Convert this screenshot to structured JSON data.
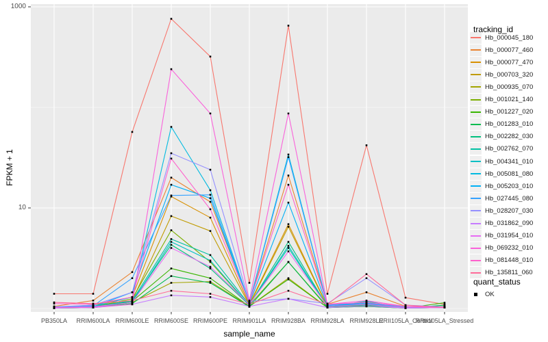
{
  "chart_data": {
    "type": "line",
    "title": "",
    "xlabel": "sample_name",
    "ylabel": "FPKM + 1",
    "y_scale": "log10",
    "grid": true,
    "legend_position": "right",
    "y_axis": {
      "ticks": [
        {
          "label": "1000",
          "value": 1000
        },
        {
          "label": "10",
          "value": 10
        }
      ],
      "minor_gridlines": [
        100,
        1
      ],
      "range_approx": [
        0.95,
        1050
      ]
    },
    "categories": [
      "PB350LA",
      "RRIM600LA",
      "RRIM600LE",
      "RRIM600SE",
      "RRIM600PE",
      "RRIM901LA",
      "RRIM928BA",
      "RRIM928LA",
      "RRIM928LE",
      "RRII105LA_Control",
      "RRII105LA_Stressed"
    ],
    "series": [
      {
        "name": "Hb_000045_180",
        "color": "#F8766D",
        "values": [
          1.4,
          1.4,
          57,
          760,
          320,
          1.8,
          650,
          1.4,
          42,
          1.28,
          1.1
        ]
      },
      {
        "name": "Hb_000077_460",
        "color": "#EA8331",
        "values": [
          1.05,
          1.2,
          2.3,
          20,
          11.5,
          1.15,
          21,
          1.1,
          1.45,
          1.05,
          1.03
        ]
      },
      {
        "name": "Hb_000077_470",
        "color": "#D89000",
        "values": [
          1.03,
          1.08,
          1.3,
          13,
          8.0,
          1.1,
          6.9,
          1.05,
          1.12,
          1.02,
          1.02
        ]
      },
      {
        "name": "Hb_000703_320",
        "color": "#C09B00",
        "values": [
          1.02,
          1.05,
          1.2,
          8.3,
          5.9,
          1.08,
          6.5,
          1.04,
          1.1,
          1.02,
          1.02
        ]
      },
      {
        "name": "Hb_000935_070",
        "color": "#A3A500",
        "values": [
          1.01,
          1.02,
          1.15,
          1.8,
          1.85,
          1.05,
          2.0,
          1.02,
          1.06,
          1.01,
          1.02
        ]
      },
      {
        "name": "Hb_001021_140",
        "color": "#7CAE00",
        "values": [
          1.01,
          1.04,
          1.25,
          6.0,
          2.9,
          1.08,
          2.9,
          1.04,
          1.08,
          1.01,
          1.05
        ]
      },
      {
        "name": "Hb_001227_020",
        "color": "#39B600",
        "values": [
          1.01,
          1.02,
          1.18,
          2.5,
          2.0,
          1.05,
          1.95,
          1.02,
          1.05,
          1.01,
          1.14
        ]
      },
      {
        "name": "Hb_001283_010",
        "color": "#00BB4E",
        "values": [
          1.01,
          1.02,
          1.12,
          2.1,
          1.8,
          1.04,
          2.9,
          1.02,
          1.05,
          1.01,
          1.08
        ]
      },
      {
        "name": "Hb_002282_030",
        "color": "#00BF7D",
        "values": [
          1.01,
          1.03,
          1.18,
          4.3,
          2.5,
          1.08,
          4.6,
          1.04,
          1.08,
          1.01,
          1.02
        ]
      },
      {
        "name": "Hb_002762_070",
        "color": "#00C1A3",
        "values": [
          1.01,
          1.04,
          1.2,
          4.9,
          3.4,
          1.09,
          4.0,
          1.04,
          1.18,
          1.01,
          1.02
        ]
      },
      {
        "name": "Hb_004341_010",
        "color": "#00BFC4",
        "values": [
          1.02,
          1.03,
          1.15,
          4.6,
          3.0,
          1.08,
          4.2,
          1.04,
          1.15,
          1.03,
          1.02
        ]
      },
      {
        "name": "Hb_005081_080",
        "color": "#00BAE0",
        "values": [
          1.02,
          1.05,
          1.3,
          64,
          15,
          1.14,
          34,
          1.08,
          1.15,
          1.02,
          1.02
        ]
      },
      {
        "name": "Hb_005203_010",
        "color": "#00B0F6",
        "values": [
          1.02,
          1.04,
          1.45,
          17,
          12.5,
          1.12,
          11.3,
          1.06,
          1.12,
          1.02,
          1.02
        ]
      },
      {
        "name": "Hb_027445_080",
        "color": "#35A2FF",
        "values": [
          1.03,
          1.06,
          2.0,
          13.3,
          13.5,
          1.13,
          32,
          1.08,
          1.14,
          1.02,
          1.02
        ]
      },
      {
        "name": "Hb_028207_030",
        "color": "#9590FF",
        "values": [
          1.04,
          1.08,
          1.45,
          35,
          24,
          1.18,
          1.25,
          1.12,
          2.0,
          1.08,
          1.04
        ]
      },
      {
        "name": "Hb_031862_090",
        "color": "#C77CFF",
        "values": [
          1.01,
          1.02,
          1.1,
          1.35,
          1.3,
          1.05,
          1.25,
          1.02,
          1.06,
          1.01,
          1.02
        ]
      },
      {
        "name": "Hb_031954_010",
        "color": "#E76BF3",
        "values": [
          1.02,
          1.04,
          1.15,
          4.0,
          2.6,
          1.1,
          3.7,
          1.05,
          1.1,
          1.02,
          1.02
        ]
      },
      {
        "name": "Hb_069232_010",
        "color": "#FA62DB",
        "values": [
          1.02,
          1.03,
          1.1,
          240,
          87,
          1.2,
          87,
          1.1,
          1.2,
          1.05,
          1.03
        ]
      },
      {
        "name": "Hb_081448_010",
        "color": "#FF61CC",
        "values": [
          1.12,
          1.1,
          1.3,
          31,
          9.7,
          1.15,
          17,
          1.1,
          1.15,
          1.05,
          1.02
        ]
      },
      {
        "name": "Hb_135811_060",
        "color": "#FF6A98",
        "values": [
          1.15,
          1.12,
          1.2,
          1.5,
          1.4,
          1.1,
          1.5,
          1.1,
          2.2,
          1.08,
          1.02
        ]
      }
    ],
    "points": {
      "shape": "filled-square",
      "color": "#000000"
    },
    "style": {
      "panel_bg": "#EBEBEB",
      "grid_color": "#FFFFFF",
      "tick_color": "#333333",
      "tick_label_color": "#4D4D4D",
      "title_color": "#000000"
    },
    "legend": {
      "color_title": "tracking_id",
      "shape_title": "quant_status",
      "shape_items": [
        {
          "label": "OK",
          "shape": "filled-square",
          "color": "#000000"
        }
      ]
    }
  }
}
